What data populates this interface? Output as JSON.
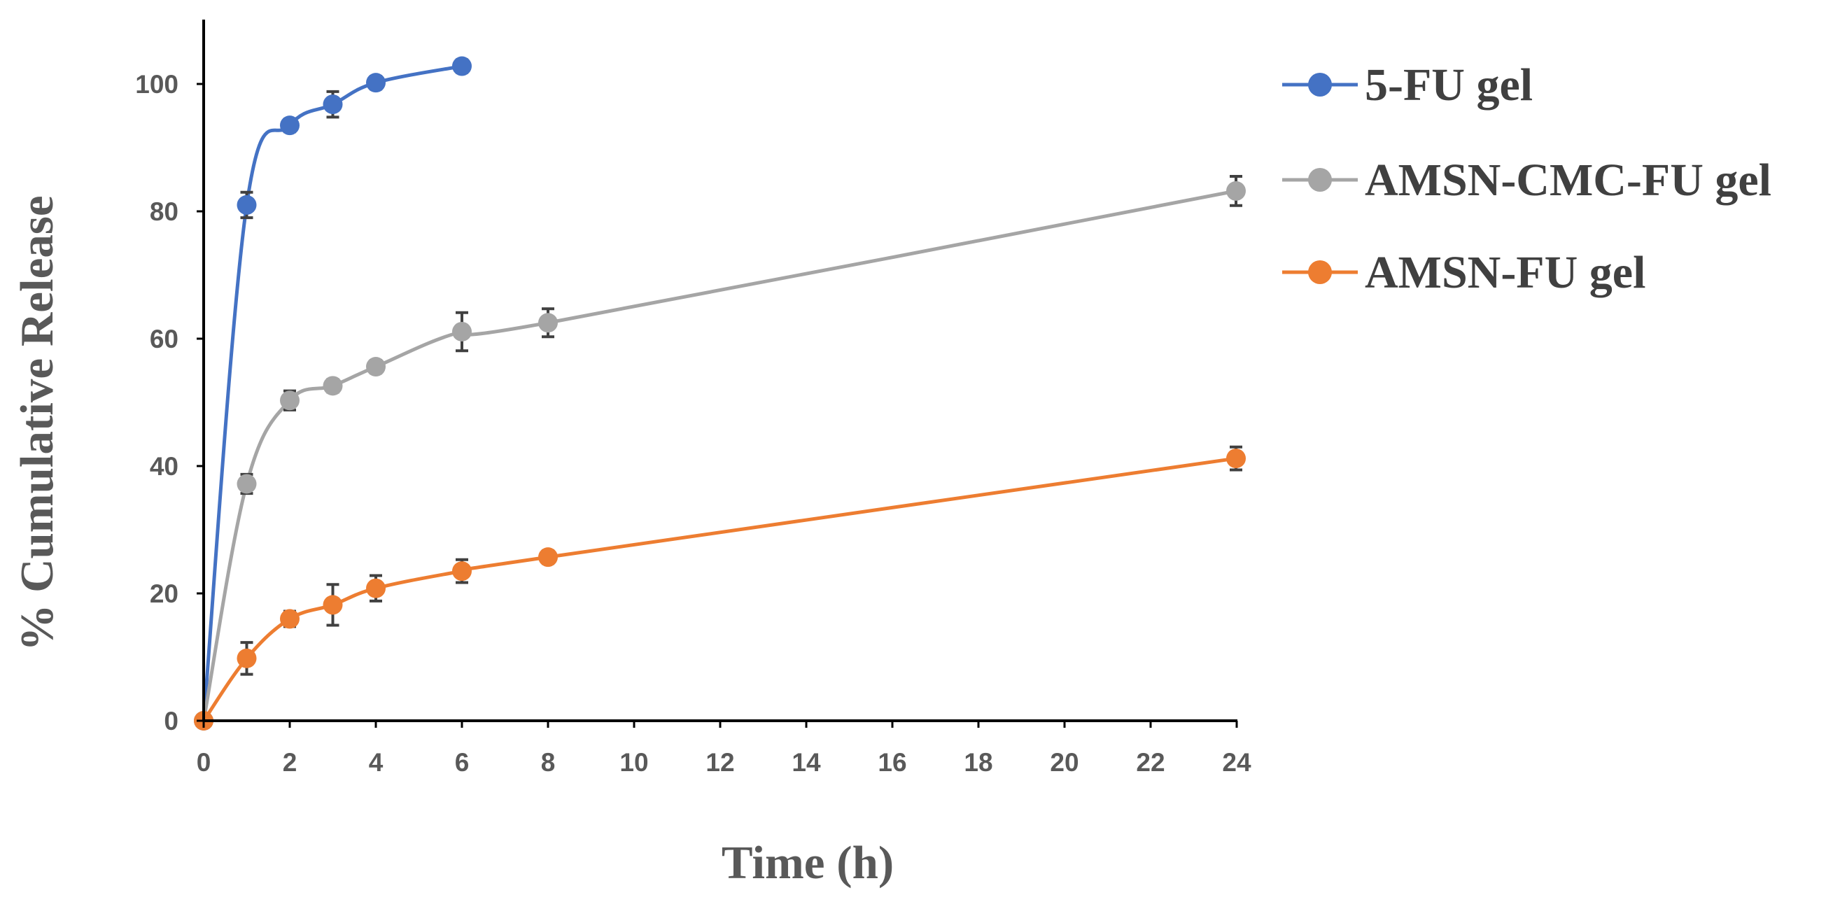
{
  "chart_data": {
    "type": "line",
    "title": "",
    "xlabel": "Time (h)",
    "ylabel": "% Cumulative Release",
    "ylim": [
      0,
      110
    ],
    "grid": false,
    "legend_position": "right",
    "x_categories": [
      "0",
      "2",
      "4",
      "6",
      "8",
      "10",
      "12",
      "14",
      "16",
      "18",
      "20",
      "22",
      "24"
    ],
    "y_ticks": [
      0,
      20,
      40,
      60,
      80,
      100
    ],
    "series": [
      {
        "name": "5-FU gel",
        "color": "#4472C4",
        "x": [
          0,
          1,
          2,
          3,
          4,
          6
        ],
        "values": [
          0,
          81,
          93.5,
          96.8,
          100.2,
          102.8
        ],
        "errors": [
          0,
          2,
          1,
          2,
          1,
          1
        ]
      },
      {
        "name": "AMSN-CMC-FU gel",
        "color": "#A5A5A5",
        "x": [
          0,
          1,
          2,
          3,
          4,
          6,
          8,
          24
        ],
        "values": [
          0,
          37.2,
          50.3,
          52.6,
          55.6,
          61.1,
          62.5,
          83.2
        ],
        "errors": [
          0,
          1.5,
          1.5,
          1,
          1,
          3,
          2.2,
          2.3
        ]
      },
      {
        "name": "AMSN-FU gel",
        "color": "#ED7D31",
        "x": [
          0,
          1,
          2,
          3,
          4,
          6,
          8,
          24
        ],
        "values": [
          0,
          9.8,
          16,
          18.2,
          20.8,
          23.5,
          25.7,
          41.2
        ],
        "errors": [
          0,
          2.5,
          1.2,
          3.2,
          2,
          1.8,
          1,
          1.8
        ]
      }
    ]
  }
}
